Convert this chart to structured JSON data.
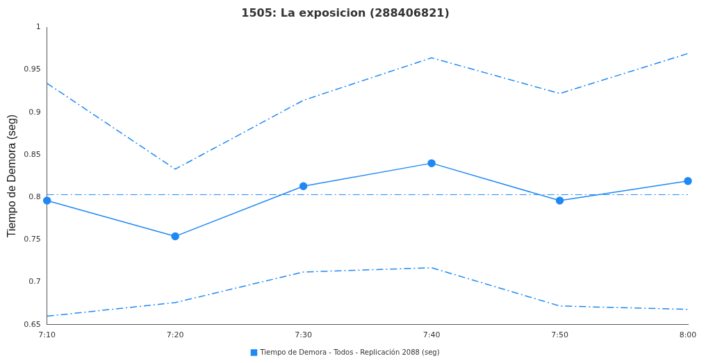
{
  "chart_data": {
    "type": "line",
    "title": "1505: La exposicion (288406821)",
    "ylabel": "Tiempo de Demora (seg)",
    "categories": [
      "7:10",
      "7:20",
      "7:30",
      "7:40",
      "7:50",
      "8:00"
    ],
    "series": [
      {
        "name": "Tiempo de Demora - Todos - Replicación 2088 (seg)",
        "color": "#1e88f5",
        "marker": "circle",
        "line_style": "solid",
        "values": [
          0.796,
          0.754,
          0.813,
          0.84,
          0.796,
          0.819
        ]
      },
      {
        "color": "#1e88f5",
        "marker": "none",
        "line_style": "dashed",
        "values": [
          0.934,
          0.833,
          0.914,
          0.964,
          0.922,
          0.969
        ]
      },
      {
        "color": "#1e88f5",
        "marker": "none",
        "line_style": "dashed",
        "values": [
          0.66,
          0.676,
          0.712,
          0.717,
          0.672,
          0.668
        ]
      }
    ],
    "ylim": [
      0.65,
      1
    ],
    "yticks": [
      0.65,
      0.7,
      0.75,
      0.8,
      0.85,
      0.9,
      0.95,
      1
    ],
    "ref_lines": [
      {
        "axis": "y",
        "value": 0.803,
        "color": "#1e88f5",
        "line_style": "dashed"
      }
    ],
    "grid": false,
    "legend": "bottom"
  }
}
